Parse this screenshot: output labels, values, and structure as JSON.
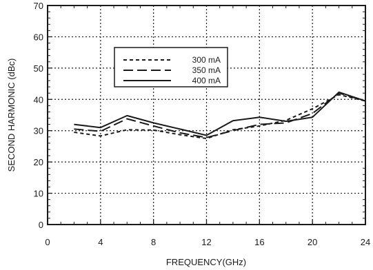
{
  "chart_data": {
    "type": "line",
    "xlabel": "FREQUENCY(GHz)",
    "ylabel": "SECOND HARMONIC (dBc)",
    "xlim": [
      0,
      24
    ],
    "ylim": [
      0,
      70
    ],
    "xticks": [
      0,
      4,
      8,
      12,
      16,
      20,
      24
    ],
    "yticks": [
      0,
      10,
      20,
      30,
      40,
      50,
      60,
      70
    ],
    "grid": "dotted",
    "legend_position": "upper-middle",
    "series": [
      {
        "name": "300 mA",
        "line_style": "short-dash",
        "color": "#1a1a1a",
        "x": [
          2,
          4,
          6,
          8,
          10,
          12,
          14,
          16,
          18,
          20,
          22,
          24
        ],
        "y": [
          29.5,
          28.3,
          30.3,
          30.2,
          28.7,
          27.5,
          30.3,
          31.5,
          33.3,
          37.0,
          41.5,
          39.5
        ]
      },
      {
        "name": "350 mA",
        "line_style": "long-dash",
        "color": "#1a1a1a",
        "x": [
          2,
          4,
          6,
          8,
          10,
          12,
          14,
          16,
          18,
          20,
          22,
          24
        ],
        "y": [
          30.5,
          29.8,
          33.8,
          31.5,
          29.3,
          27.8,
          30.0,
          32.0,
          32.5,
          35.5,
          42.0,
          39.5
        ]
      },
      {
        "name": "400 mA",
        "line_style": "solid",
        "color": "#1a1a1a",
        "x": [
          2,
          4,
          6,
          8,
          10,
          12,
          14,
          16,
          18,
          20,
          22,
          24
        ],
        "y": [
          32.0,
          31.0,
          34.8,
          32.5,
          30.5,
          28.5,
          33.2,
          34.3,
          33.0,
          34.3,
          42.3,
          39.5
        ]
      }
    ]
  }
}
